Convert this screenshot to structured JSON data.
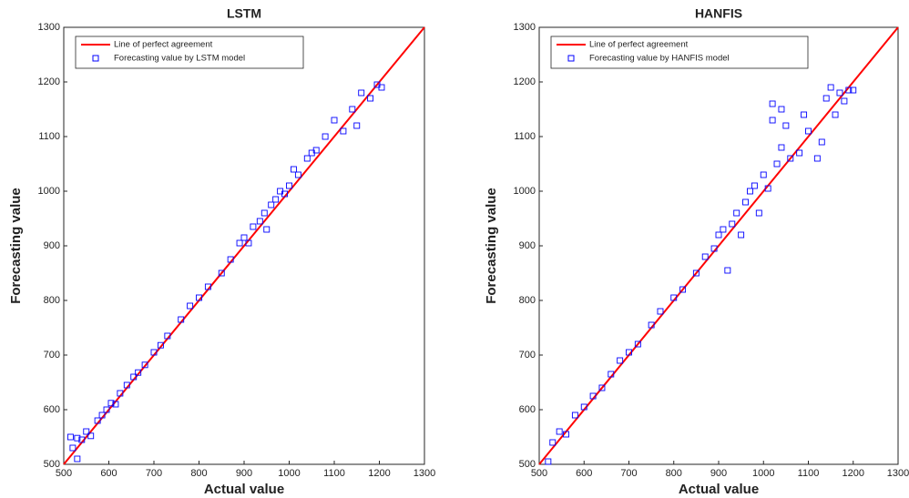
{
  "chart_data": [
    {
      "type": "scatter",
      "title": "LSTM",
      "xlabel": "Actual value",
      "ylabel": "Forecasting value",
      "xlim": [
        500,
        1300
      ],
      "ylim": [
        500,
        1300
      ],
      "xticks": [
        500,
        600,
        700,
        800,
        900,
        1000,
        1100,
        1200,
        1300
      ],
      "yticks": [
        500,
        600,
        700,
        800,
        900,
        1000,
        1100,
        1200,
        1300
      ],
      "legend": "northwest",
      "series": [
        {
          "name": "Line of perfect agreement",
          "color": "#ff0000",
          "mode": "line",
          "x": [
            500,
            1300
          ],
          "values": [
            500,
            1300
          ]
        },
        {
          "name": "Forecasting value by LSTM model",
          "color": "#0000ff",
          "mode": "markers",
          "x": [
            520,
            530,
            540,
            550,
            560,
            575,
            585,
            595,
            605,
            615,
            625,
            640,
            655,
            665,
            680,
            700,
            715,
            730,
            760,
            780,
            800,
            820,
            850,
            870,
            890,
            900,
            910,
            920,
            935,
            945,
            950,
            960,
            970,
            980,
            990,
            1000,
            1010,
            1020,
            1040,
            1050,
            1060,
            1080,
            1100,
            1120,
            1140,
            1150,
            1160,
            1180,
            1195,
            1205,
            530,
            515
          ],
          "values": [
            530,
            548,
            545,
            560,
            552,
            580,
            590,
            600,
            612,
            610,
            630,
            645,
            660,
            668,
            682,
            705,
            718,
            735,
            765,
            790,
            805,
            825,
            850,
            875,
            905,
            915,
            905,
            935,
            945,
            960,
            930,
            975,
            985,
            1000,
            995,
            1010,
            1040,
            1030,
            1060,
            1070,
            1075,
            1100,
            1130,
            1110,
            1150,
            1120,
            1180,
            1170,
            1195,
            1190,
            510,
            550
          ]
        }
      ]
    },
    {
      "type": "scatter",
      "title": "HANFIS",
      "xlabel": "Actual value",
      "ylabel": "Forecasting value",
      "xlim": [
        500,
        1300
      ],
      "ylim": [
        500,
        1300
      ],
      "xticks": [
        500,
        600,
        700,
        800,
        900,
        1000,
        1100,
        1200,
        1300
      ],
      "yticks": [
        500,
        600,
        700,
        800,
        900,
        1000,
        1100,
        1200,
        1300
      ],
      "legend": "northwest",
      "series": [
        {
          "name": "Line of perfect agreement",
          "color": "#ff0000",
          "mode": "line",
          "x": [
            500,
            1300
          ],
          "values": [
            500,
            1300
          ]
        },
        {
          "name": "Forecasting value by HANFIS model",
          "color": "#0000ff",
          "mode": "markers",
          "x": [
            520,
            530,
            545,
            560,
            580,
            600,
            620,
            640,
            660,
            680,
            700,
            720,
            750,
            770,
            800,
            820,
            850,
            870,
            890,
            900,
            910,
            920,
            930,
            940,
            950,
            960,
            970,
            980,
            990,
            1000,
            1010,
            1020,
            1030,
            1040,
            1050,
            1060,
            1080,
            1090,
            1100,
            1120,
            1130,
            1140,
            1150,
            1160,
            1170,
            1180,
            1190,
            1200,
            1020,
            1040
          ],
          "values": [
            505,
            540,
            560,
            555,
            590,
            605,
            625,
            640,
            665,
            690,
            705,
            720,
            755,
            780,
            805,
            820,
            850,
            880,
            895,
            920,
            930,
            855,
            940,
            960,
            920,
            980,
            1000,
            1010,
            960,
            1030,
            1005,
            1160,
            1050,
            1080,
            1120,
            1060,
            1070,
            1140,
            1110,
            1060,
            1090,
            1170,
            1190,
            1140,
            1180,
            1165,
            1185,
            1185,
            1130,
            1150
          ]
        }
      ]
    }
  ]
}
